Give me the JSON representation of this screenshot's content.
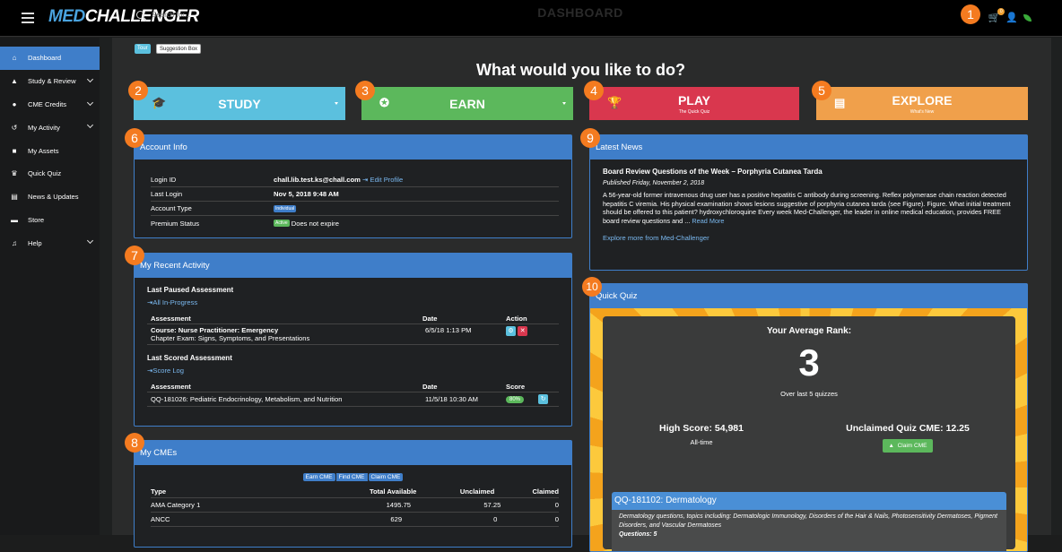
{
  "topbar": {
    "logo_part1": "MED",
    "logo_part2": "CHALLENGER",
    "search_placeholder": "Search for...",
    "title": "DASHBOARD",
    "cart_badge": "0",
    "cart_icon": "cart-icon",
    "user_icon": "user-icon",
    "leaf_icon": "leaf-icon"
  },
  "callouts": [
    "1",
    "2",
    "3",
    "4",
    "5",
    "6",
    "7",
    "8",
    "9",
    "10"
  ],
  "sidebar": {
    "items": [
      {
        "label": "Dashboard",
        "icon": "home-icon",
        "glyph": "⌂"
      },
      {
        "label": "Study & Review",
        "icon": "graduation-cap-icon",
        "glyph": "⌂"
      },
      {
        "label": "CME Credits",
        "icon": "certificate-icon",
        "glyph": "▾"
      },
      {
        "label": "My Activity",
        "icon": "history-icon",
        "glyph": "↺"
      },
      {
        "label": "My Assets",
        "icon": "book-icon",
        "glyph": "■"
      },
      {
        "label": "Quick Quiz",
        "icon": "trophy-icon",
        "glyph": "♛"
      },
      {
        "label": "News & Updates",
        "icon": "newspaper-icon",
        "glyph": "▤"
      },
      {
        "label": "Store",
        "icon": "cart-icon",
        "glyph": "▬"
      },
      {
        "label": "Help",
        "icon": "support-icon",
        "glyph": "♫"
      }
    ]
  },
  "toolbar": {
    "tour": "Tour",
    "suggestion": "Suggestion Box"
  },
  "heading": "What would you like to do?",
  "actions": {
    "study": "STUDY",
    "earn": "EARN",
    "play": "PLAY",
    "play_sub": "The Quick Quiz",
    "explore": "EXPLORE",
    "explore_sub": "What's New",
    "colors": {
      "study": "#5bc0de",
      "earn": "#5cb85c",
      "play": "#d9374e",
      "explore": "#f0a04b"
    }
  },
  "account": {
    "title": "Account Info",
    "login_id_label": "Login ID",
    "login_id": "chall.lib.test.ks@chall.com",
    "edit_profile": "Edit Profile",
    "last_login_label": "Last Login",
    "last_login": "Nov 5, 2018 9:48 AM",
    "account_type_label": "Account Type",
    "account_type": "Individual",
    "premium_label": "Premium Status",
    "premium_badge": "Active",
    "premium_text": "Does not expire"
  },
  "activity": {
    "title": "My Recent Activity",
    "paused_title": "Last Paused Assessment",
    "all_in_progress": "All In-Progress",
    "col_assessment": "Assessment",
    "col_date": "Date",
    "col_action": "Action",
    "paused_course": "Course: Nurse Practitioner: Emergency",
    "paused_chapter": "Chapter Exam: Signs, Symptoms, and Presentations",
    "paused_date": "6/5/18 1:13 PM",
    "scored_title": "Last Scored Assessment",
    "score_log": "Score Log",
    "col_score": "Score",
    "scored_name": "QQ-181026: Pediatric Endocrinology, Metabolism, and Nutrition",
    "scored_date": "11/5/18 10:30 AM",
    "scored_score": "80%"
  },
  "cmes": {
    "title": "My CMEs",
    "earn": "Earn CME",
    "find": "Find CME",
    "claim": "Claim CME",
    "cols": [
      "Type",
      "Total Available",
      "Unclaimed",
      "Claimed"
    ],
    "rows": [
      [
        "AMA Category 1",
        "1495.75",
        "57.25",
        "0"
      ],
      [
        "ANCC",
        "629",
        "0",
        "0"
      ]
    ]
  },
  "news": {
    "title": "Latest News",
    "headline": "Board Review Questions of the Week – Porphyria Cutanea Tarda",
    "published": "Published Friday, November 2, 2018",
    "body": "A 56-year-old former intravenous drug user has a positive hepatitis C antibody during screening. Reflex polymerase chain reaction detected hepatitis C viremia. His physical examination shows lesions suggestive of porphyria cutanea tarda (see Figure). Figure. What initial treatment should be offered to this patient? hydroxychloroquine Every week Med-Challenger, the leader in online medical education, provides FREE board review questions and ...",
    "read_more": "Read More",
    "explore_more": "Explore more from Med-Challenger"
  },
  "quiz": {
    "title": "Quick Quiz",
    "avg_rank_label": "Your Average Rank:",
    "rank": "3",
    "over_last": "Over last 5 quizzes",
    "high_score": "High Score: 54,981",
    "all_time": "All-time",
    "unclaimed": "Unclaimed Quiz CME: 12.25",
    "claim_btn": "Claim CME",
    "next_title": "QQ-181102: Dermatology",
    "next_desc": "Dermatology questions, topics including: Dermatologic Immunology, Disorders of the Hair & Nails, Photosensitivity Dermatoses, Pigment Disorders, and Vascular Dermatoses",
    "next_questions": "Questions: 5"
  }
}
